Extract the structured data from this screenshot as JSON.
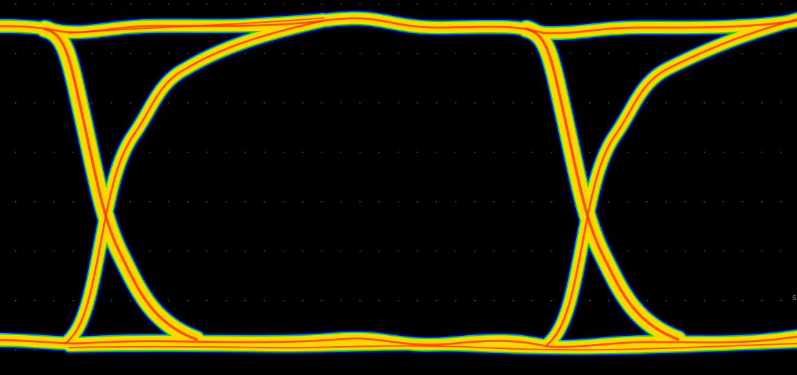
{
  "chart_data": {
    "type": "eye-diagram",
    "title": "",
    "xlabel": "",
    "ylabel": "",
    "grid": true,
    "colors": {
      "background": "#000000",
      "outer": "#0000ff",
      "mid": "#00e000",
      "high": "#ffd700",
      "peak": "#ff3000",
      "grid": "#5a5a5a"
    },
    "eyes_visible": 2
  },
  "edge_label": "S"
}
